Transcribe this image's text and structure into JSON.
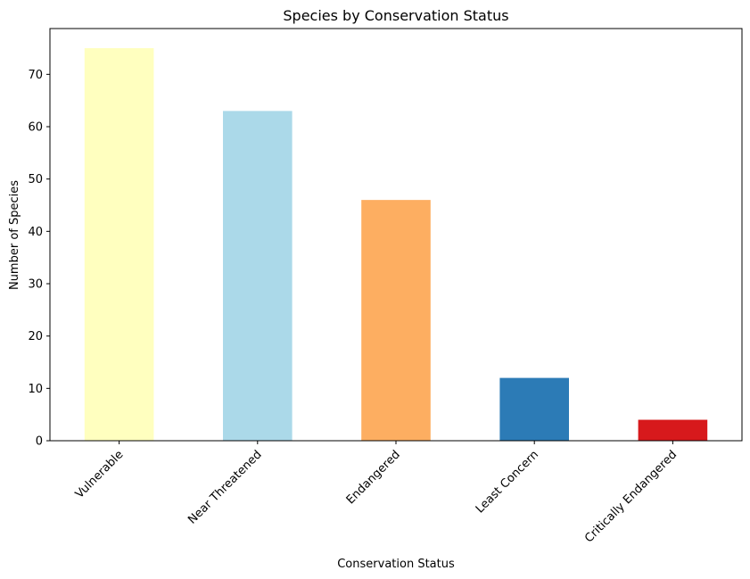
{
  "chart_data": {
    "type": "bar",
    "title": "Species by Conservation Status",
    "xlabel": "Conservation Status",
    "ylabel": "Number of Species",
    "categories": [
      "Vulnerable",
      "Near Threatened",
      "Endangered",
      "Least Concern",
      "Critically Endangered"
    ],
    "values": [
      75,
      63,
      46,
      12,
      4
    ],
    "colors": [
      "#ffffbf",
      "#abd9e9",
      "#fdae61",
      "#2c7bb6",
      "#d7191c"
    ],
    "ylim": [
      0,
      78.75
    ],
    "yticks": [
      0,
      10,
      20,
      30,
      40,
      50,
      60,
      70
    ],
    "grid": false,
    "legend": false,
    "x_tick_rotation_deg": 45
  }
}
